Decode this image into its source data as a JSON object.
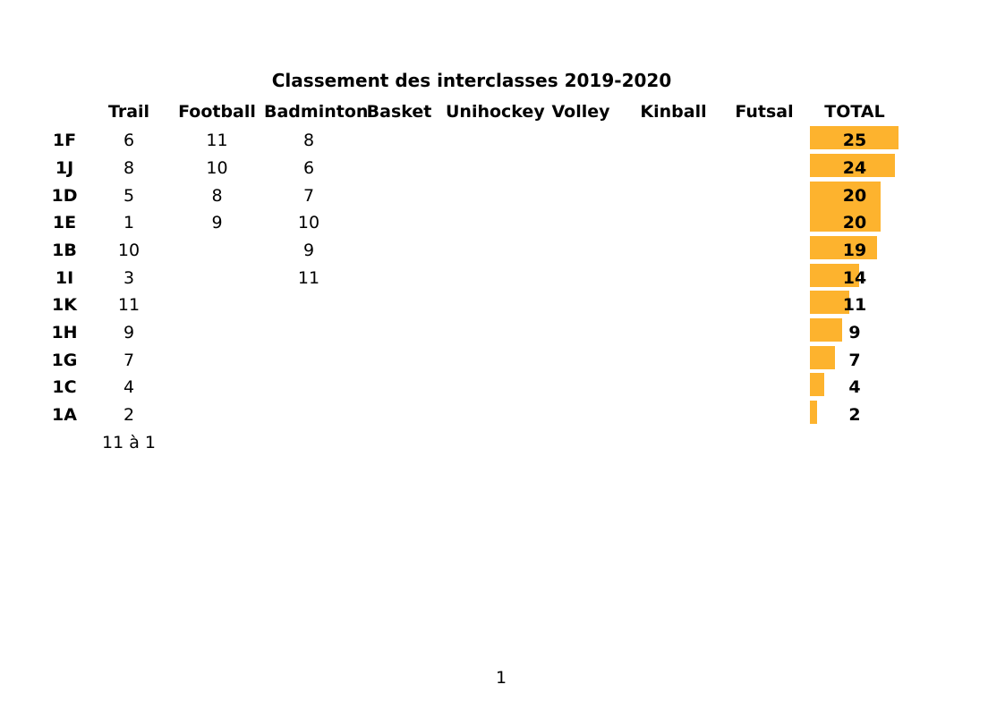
{
  "page": {
    "number": "1"
  },
  "chart_data": {
    "type": "bar",
    "orientation": "horizontal",
    "title": "Classement des interclasses 2019-2020",
    "columns": [
      "Trail",
      "Football",
      "Badminton",
      "Basket",
      "Unihockey",
      "Volley",
      "Kinball",
      "Futsal",
      "TOTAL"
    ],
    "categories": [
      "1F",
      "1J",
      "1D",
      "1E",
      "1B",
      "1I",
      "1K",
      "1H",
      "1G",
      "1C",
      "1A"
    ],
    "cells": [
      [
        6,
        11,
        8,
        null,
        null,
        null,
        null,
        null
      ],
      [
        8,
        10,
        6,
        null,
        null,
        null,
        null,
        null
      ],
      [
        5,
        8,
        7,
        null,
        null,
        null,
        null,
        null
      ],
      [
        1,
        9,
        10,
        null,
        null,
        null,
        null,
        null
      ],
      [
        10,
        null,
        9,
        null,
        null,
        null,
        null,
        null
      ],
      [
        3,
        null,
        11,
        null,
        null,
        null,
        null,
        null
      ],
      [
        11,
        null,
        null,
        null,
        null,
        null,
        null,
        null
      ],
      [
        9,
        null,
        null,
        null,
        null,
        null,
        null,
        null
      ],
      [
        7,
        null,
        null,
        null,
        null,
        null,
        null,
        null
      ],
      [
        4,
        null,
        null,
        null,
        null,
        null,
        null,
        null
      ],
      [
        2,
        null,
        null,
        null,
        null,
        null,
        null,
        null
      ]
    ],
    "totals": [
      25,
      24,
      20,
      20,
      19,
      14,
      11,
      9,
      7,
      4,
      2
    ],
    "footnote": "11 à 1",
    "bar_color": "#FDB32E",
    "xlim": [
      0,
      25.5
    ],
    "legend": "none",
    "grid": false
  }
}
